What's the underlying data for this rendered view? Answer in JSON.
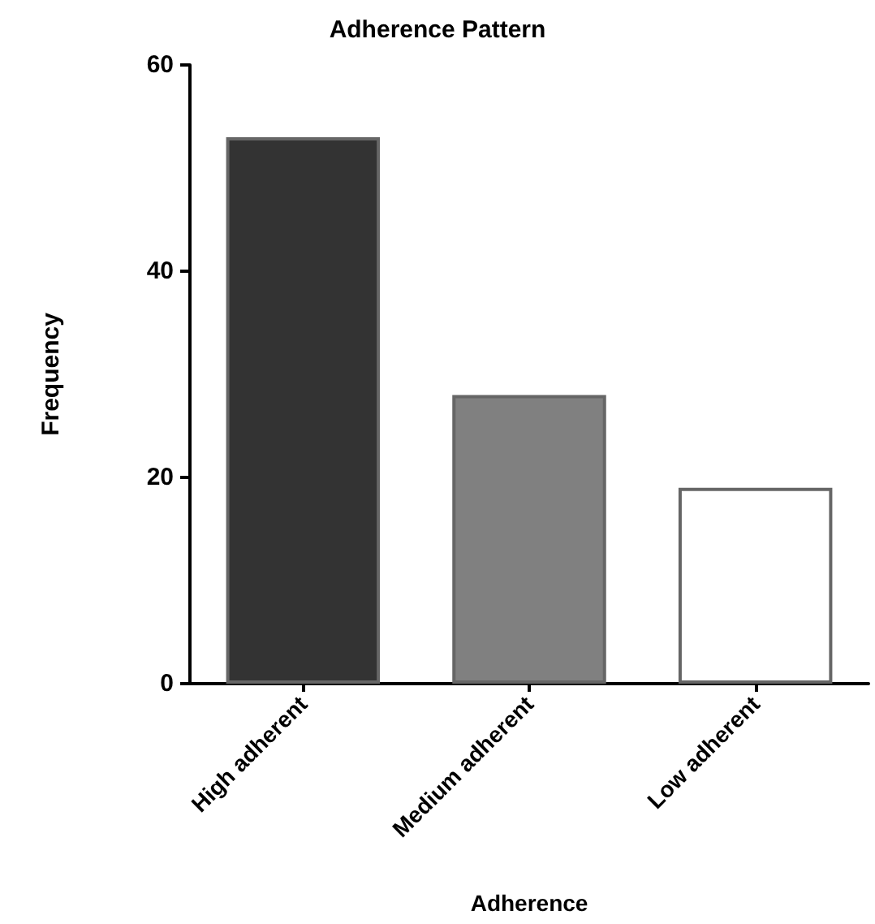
{
  "chart_data": {
    "type": "bar",
    "title": "Adherence Pattern",
    "xlabel": "Adherence",
    "ylabel": "Frequency",
    "categories": [
      "High adherent",
      "Medium adherent",
      "Low adherent"
    ],
    "values": [
      53,
      28,
      19
    ],
    "colors": [
      "#333333",
      "#808080",
      "#ffffff"
    ],
    "ylim": [
      0,
      60
    ],
    "yticks": [
      0,
      20,
      40,
      60
    ],
    "grid": false
  }
}
